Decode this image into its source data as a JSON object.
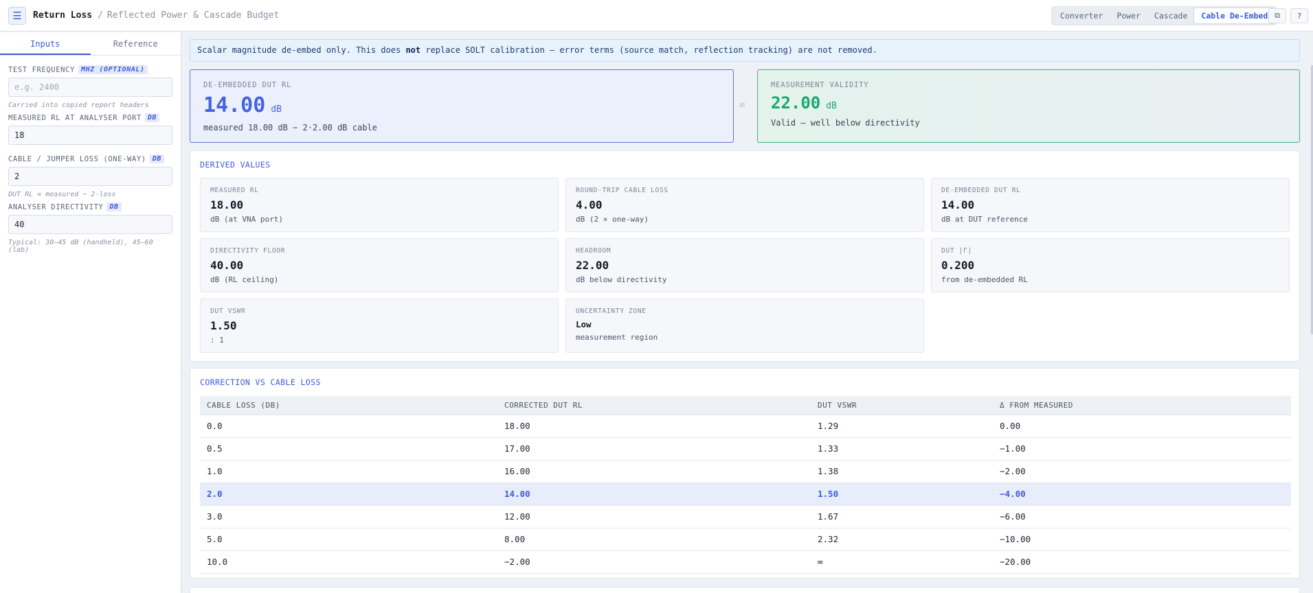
{
  "header": {
    "title": "Return Loss",
    "separator": "/",
    "subtitle": "Reflected Power & Cascade Budget",
    "menu_icon": "hamburger-icon",
    "modes": [
      {
        "label": "Converter",
        "active": false
      },
      {
        "label": "Power",
        "active": false
      },
      {
        "label": "Cascade",
        "active": false
      },
      {
        "label": "Cable De-Embed",
        "active": true
      }
    ],
    "copy_icon": "copy-icon",
    "help_icon": "help-icon"
  },
  "sidebar": {
    "tabs": [
      {
        "label": "Inputs",
        "active": true
      },
      {
        "label": "Reference",
        "active": false
      }
    ],
    "fields": {
      "frequency": {
        "label": "TEST FREQUENCY",
        "unit": "MHZ (OPTIONAL)",
        "value": "",
        "placeholder": "e.g. 2400",
        "hint": "Carried into copied report headers"
      },
      "measured_rl": {
        "label": "MEASURED RL AT ANALYSER PORT",
        "unit": "DB",
        "value": "18"
      },
      "cable_loss": {
        "label": "CABLE / JUMPER LOSS (ONE-WAY)",
        "unit": "DB",
        "value": "2",
        "hint": "DUT RL = measured − 2·loss"
      },
      "directivity": {
        "label": "ANALYSER DIRECTIVITY",
        "unit": "DB",
        "value": "40",
        "hint": "Typical: 30–45 dB (handheld), 45–60 (lab)"
      }
    }
  },
  "banner": {
    "before": "Scalar magnitude de-embed only. This does ",
    "bold": "not",
    "after": " replace SOLT calibration — error terms (source match, reflection tracking) are not removed."
  },
  "result": {
    "title": "DE-EMBEDDED DUT RL",
    "value": "14.00",
    "unit": "dB",
    "sub": "measured 18.00 dB − 2·2.00 dB cable"
  },
  "swap_icon": "swap-arrows-icon",
  "validity": {
    "title": "MEASUREMENT VALIDITY",
    "value": "22.00",
    "unit": "dB",
    "sub": "Valid — well below directivity"
  },
  "derived": {
    "title": "DERIVED VALUES",
    "tiles": [
      {
        "label": "MEASURED RL",
        "value": "18.00",
        "unit": "dB (at VNA port)"
      },
      {
        "label": "ROUND-TRIP CABLE LOSS",
        "value": "4.00",
        "unit": "dB (2 × one-way)"
      },
      {
        "label": "DE-EMBEDDED DUT RL",
        "value": "14.00",
        "unit": "dB at DUT reference"
      },
      {
        "label": "DIRECTIVITY FLOOR",
        "value": "40.00",
        "unit": "dB (RL ceiling)"
      },
      {
        "label": "HEADROOM",
        "value": "22.00",
        "unit": "dB below directivity"
      },
      {
        "label": "DUT |Γ|",
        "value": "0.200",
        "unit": "from de-embedded RL"
      },
      {
        "label": "DUT VSWR",
        "value": "1.50",
        "unit": ": 1"
      },
      {
        "label": "UNCERTAINTY ZONE",
        "value": "Low",
        "unit": "measurement region"
      }
    ]
  },
  "correction": {
    "title": "CORRECTION VS CABLE LOSS",
    "columns": [
      "CABLE LOSS (DB)",
      "CORRECTED DUT RL",
      "DUT VSWR",
      "Δ FROM MEASURED"
    ],
    "rows": [
      {
        "cells": [
          "0.0",
          "18.00",
          "1.29",
          "0.00"
        ],
        "highlight": false
      },
      {
        "cells": [
          "0.5",
          "17.00",
          "1.33",
          "−1.00"
        ],
        "highlight": false
      },
      {
        "cells": [
          "1.0",
          "16.00",
          "1.38",
          "−2.00"
        ],
        "highlight": false
      },
      {
        "cells": [
          "2.0",
          "14.00",
          "1.50",
          "−4.00"
        ],
        "highlight": true
      },
      {
        "cells": [
          "3.0",
          "12.00",
          "1.67",
          "−6.00"
        ],
        "highlight": false
      },
      {
        "cells": [
          "5.0",
          "8.00",
          "2.32",
          "−10.00"
        ],
        "highlight": false
      },
      {
        "cells": [
          "10.0",
          "−2.00",
          "∞",
          "−20.00"
        ],
        "highlight": false
      }
    ]
  },
  "colors": {
    "accent": "#3b5bdb",
    "valid": "#1aa675",
    "highlight_row": "#e8edfc"
  }
}
